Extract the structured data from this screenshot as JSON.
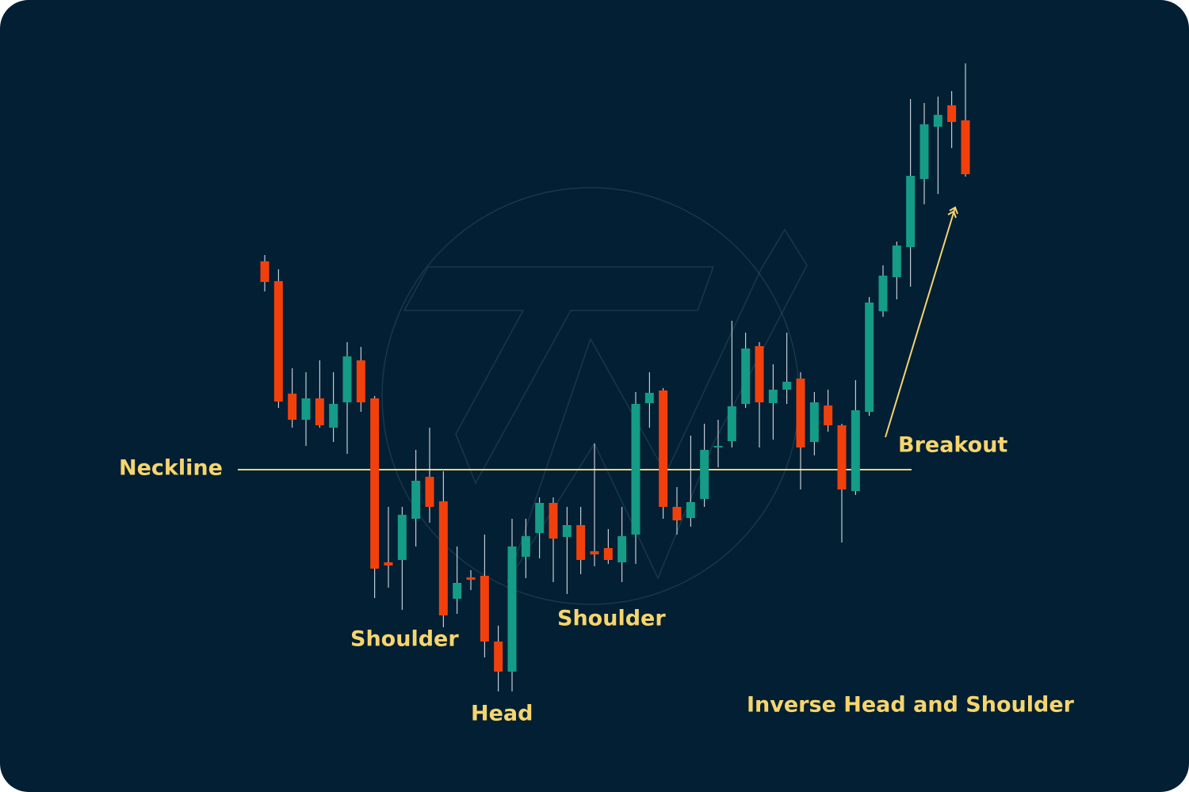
{
  "chart_data": {
    "type": "candlestick",
    "ylim": [
      0,
      1000
    ],
    "up_color": "#149c86",
    "down_color": "#f2400d",
    "open": [
      670,
      645,
      503,
      470,
      497,
      460,
      492,
      545,
      497,
      290,
      293,
      345,
      398,
      367,
      244,
      271,
      273,
      190,
      152,
      297,
      327,
      365,
      322,
      337,
      304,
      308,
      290,
      325,
      491,
      507,
      360,
      346,
      370,
      435,
      443,
      490,
      563,
      491,
      508,
      522,
      442,
      488,
      463,
      380,
      480,
      607,
      650,
      688,
      774,
      840,
      867,
      848
    ],
    "high": [
      678,
      660,
      535,
      530,
      545,
      530,
      568,
      562,
      500,
      360,
      360,
      432,
      460,
      405,
      310,
      280,
      325,
      210,
      345,
      345,
      372,
      372,
      360,
      360,
      440,
      332,
      360,
      505,
      530,
      510,
      385,
      450,
      465,
      470,
      595,
      580,
      568,
      540,
      580,
      530,
      505,
      508,
      465,
      520,
      625,
      665,
      695,
      875,
      870,
      878,
      885,
      920
    ],
    "low": [
      632,
      485,
      460,
      437,
      460,
      442,
      427,
      480,
      245,
      258,
      230,
      310,
      340,
      208,
      225,
      255,
      170,
      127,
      127,
      270,
      295,
      265,
      250,
      275,
      285,
      288,
      265,
      288,
      460,
      345,
      325,
      335,
      360,
      410,
      435,
      485,
      435,
      445,
      490,
      382,
      425,
      455,
      315,
      375,
      475,
      600,
      622,
      638,
      742,
      755,
      813,
      777
    ],
    "close": [
      644,
      493,
      470,
      497,
      463,
      490,
      550,
      492,
      282,
      286,
      350,
      393,
      360,
      223,
      264,
      268,
      190,
      152,
      310,
      323,
      365,
      320,
      337,
      293,
      300,
      293,
      323,
      490,
      504,
      360,
      343,
      366,
      432,
      437,
      487,
      560,
      492,
      508,
      518,
      435,
      492,
      463,
      382,
      482,
      618,
      652,
      690,
      778,
      843,
      855,
      846,
      780
    ],
    "neckline": {
      "label": "Neckline",
      "value": 407,
      "color": "#f3d472"
    },
    "annotations": [
      "Shoulder",
      "Head",
      "Shoulder",
      "Breakout"
    ],
    "title": "Inverse Head and Shoulder"
  }
}
